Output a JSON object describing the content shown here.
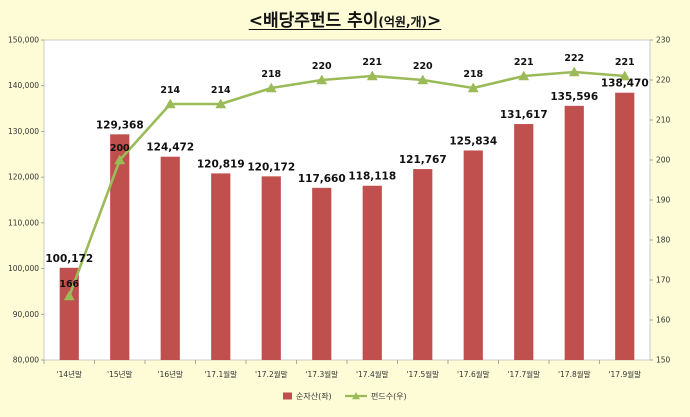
{
  "title": {
    "main": "<배당주펀드 추이",
    "unit": "(억원,개)",
    "close": ">"
  },
  "colors": {
    "bar": "#c0504d",
    "line": "#9bbb59",
    "plot_bg": "#ffffff",
    "page_bg": "#fdfcd6"
  },
  "chart_data": {
    "type": "bar",
    "categories": [
      "'14년말",
      "'15년말",
      "'16년말",
      "'17.1월말",
      "'17.2월말",
      "'17.3월말",
      "'17.4월말",
      "'17.5월말",
      "'17.6월말",
      "'17.7월말",
      "'17.8월말",
      "'17.9월말"
    ],
    "series": [
      {
        "name": "순자산(좌)",
        "chart_type": "bar",
        "axis": "left",
        "values": [
          100172,
          129368,
          124472,
          120819,
          120172,
          117660,
          118118,
          121767,
          125834,
          131617,
          135596,
          138470
        ],
        "labels": [
          "100,172",
          "129,368",
          "124,472",
          "120,819",
          "120,172",
          "117,660",
          "118,118",
          "121,767",
          "125,834",
          "131,617",
          "135,596",
          "138,470"
        ]
      },
      {
        "name": "펀드수(우)",
        "chart_type": "line",
        "axis": "right",
        "marker": "triangle",
        "values": [
          166,
          200,
          214,
          214,
          218,
          220,
          221,
          220,
          218,
          221,
          222,
          221
        ],
        "labels": [
          "166",
          "200",
          "214",
          "214",
          "218",
          "220",
          "221",
          "220",
          "218",
          "221",
          "222",
          "221"
        ]
      }
    ],
    "ylim_left": [
      80000,
      150000
    ],
    "yticks_left": [
      "80,000",
      "90,000",
      "100,000",
      "110,000",
      "120,000",
      "130,000",
      "140,000",
      "150,000"
    ],
    "ylim_right": [
      150,
      230
    ],
    "yticks_right": [
      "150",
      "160",
      "170",
      "180",
      "190",
      "200",
      "210",
      "220",
      "230"
    ],
    "grid": false,
    "legend_position": "bottom"
  }
}
